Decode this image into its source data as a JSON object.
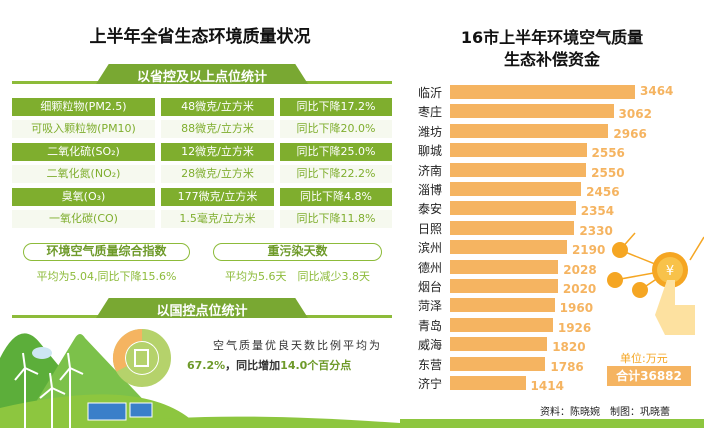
{
  "left": {
    "title": "上半年全省生态环境质量状况",
    "section1": "以省控及以上点位统计",
    "rows": [
      {
        "name": "细颗粒物(PM2.5)",
        "value": "48微克/立方米",
        "change": "同比下降17.2%"
      },
      {
        "name": "可吸入颗粒物(PM10)",
        "value": "88微克/立方米",
        "change": "同比下降20.0%"
      },
      {
        "name": "二氧化硫(SO₂)",
        "value": "12微克/立方米",
        "change": "同比下降25.0%"
      },
      {
        "name": "二氧化氮(NO₂)",
        "value": "28微克/立方米",
        "change": "同比下降22.2%"
      },
      {
        "name": "臭氧(O₃)",
        "value": "177微克/立方米",
        "change": "同比下降4.8%"
      },
      {
        "name": "一氧化碳(CO)",
        "value": "1.5毫克/立方米",
        "change": "同比下降11.8%"
      }
    ],
    "aqi_label": "环境空气质量综合指数",
    "aqi_text": "平均为5.04,同比下降15.6%",
    "pollution_label": "重污染天数",
    "pollution_text": "平均为5.6天　同比减少3.8天",
    "section2": "以国控点位统计",
    "good_days_line1": "空气质量优良天数比例平均为",
    "good_days_pct": "67.2%",
    "good_days_mid": "，同比增加",
    "good_days_inc": "14.0个百分点",
    "donut_fraction": 0.672
  },
  "chart_data": {
    "type": "bar",
    "orientation": "horizontal",
    "title": "16市上半年环境空气质量生态补偿资金",
    "title_line1": "16市上半年环境空气质量",
    "title_line2": "生态补偿资金",
    "categories": [
      "临沂",
      "枣庄",
      "潍坊",
      "聊城",
      "济南",
      "淄博",
      "泰安",
      "日照",
      "滨州",
      "德州",
      "烟台",
      "菏泽",
      "青岛",
      "威海",
      "东营",
      "济宁"
    ],
    "values": [
      3464,
      3062,
      2966,
      2556,
      2550,
      2456,
      2354,
      2330,
      2190,
      2028,
      2020,
      1960,
      1926,
      1820,
      1786,
      1414
    ],
    "unit": "单位:万元",
    "total": "合计36882",
    "bar_color": "#f5b461"
  },
  "credits": "资料：陈晓婉　制图：巩晓蕾",
  "colors": {
    "green": "#7fae2e",
    "orange": "#f5b461"
  }
}
